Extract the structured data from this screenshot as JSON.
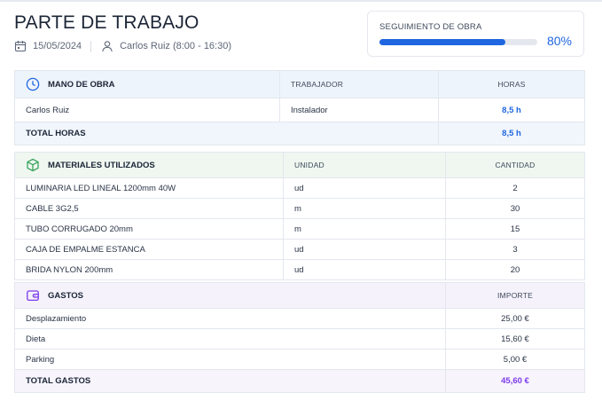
{
  "header": {
    "title": "PARTE DE TRABAJO",
    "date": "15/05/2024",
    "worker_shift": "Carlos Ruiz (8:00 - 16:30)"
  },
  "progress": {
    "label": "SEGUIMIENTO DE OBRA",
    "value_text": "80%",
    "value": 0.8,
    "color": "#1f66e0"
  },
  "labor": {
    "title": "MANO DE OBRA",
    "col_worker": "TRABAJADOR",
    "col_hours": "HORAS",
    "rows": [
      {
        "name": "Carlos Ruiz",
        "role": "Instalador",
        "hours": "8,5 h"
      }
    ],
    "total_label": "TOTAL HORAS",
    "total_value": "8,5 h"
  },
  "materials": {
    "title": "MATERIALES UTILIZADOS",
    "col_unit": "UNIDAD",
    "col_qty": "CANTIDAD",
    "rows": [
      {
        "name": "LUMINARIA LED LINEAL 1200mm 40W",
        "unit": "ud",
        "qty": "2"
      },
      {
        "name": "CABLE 3G2,5",
        "unit": "m",
        "qty": "30"
      },
      {
        "name": "TUBO CORRUGADO 20mm",
        "unit": "m",
        "qty": "15"
      },
      {
        "name": "CAJA DE EMPALME ESTANCA",
        "unit": "ud",
        "qty": "3"
      },
      {
        "name": "BRIDA NYLON 200mm",
        "unit": "ud",
        "qty": "20"
      }
    ]
  },
  "expenses": {
    "title": "GASTOS",
    "col_amount": "IMPORTE",
    "rows": [
      {
        "name": "Desplazamiento",
        "amount": "25,00 €"
      },
      {
        "name": "Dieta",
        "amount": "15,60 €"
      },
      {
        "name": "Parking",
        "amount": "5,00 €"
      }
    ],
    "total_label": "TOTAL GASTOS",
    "total_value": "45,60 €"
  },
  "colors": {
    "accent_blue": "#1f66e0",
    "accent_green": "#3aa35c",
    "accent_purple": "#7c3aed"
  },
  "icons": {
    "date": "calendar-icon",
    "worker": "user-icon",
    "labor": "clock-icon",
    "materials": "box-icon",
    "expenses": "wallet-icon"
  }
}
